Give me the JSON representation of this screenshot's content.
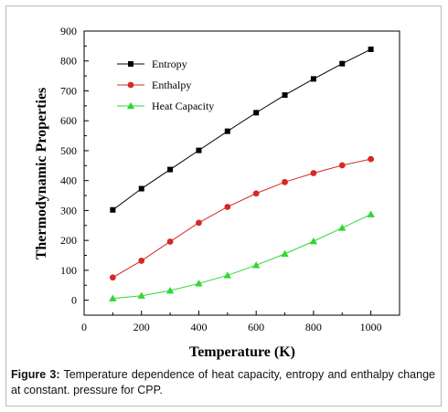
{
  "chart_data": {
    "type": "line",
    "title": "",
    "xlabel": "Temperature (K)",
    "ylabel": "Thermodynamic Properties",
    "xlim": [
      0,
      1100
    ],
    "ylim": [
      -50,
      900
    ],
    "x_ticks": [
      0,
      200,
      400,
      600,
      800,
      1000
    ],
    "y_ticks": [
      0,
      100,
      200,
      300,
      400,
      500,
      600,
      700,
      800,
      900
    ],
    "x": [
      100,
      200,
      300,
      400,
      500,
      600,
      700,
      800,
      900,
      1000
    ],
    "series": [
      {
        "name": "Entropy",
        "marker": "square",
        "color": "#000000",
        "values": [
          302,
          373,
          437,
          501,
          565,
          627,
          686,
          740,
          791,
          839
        ]
      },
      {
        "name": "Enthalpy",
        "marker": "circle",
        "color": "#d62828",
        "values": [
          76,
          132,
          196,
          259,
          312,
          357,
          395,
          425,
          451,
          472
        ]
      },
      {
        "name": "Heat Capacity",
        "marker": "triangle",
        "color": "#33d633",
        "values": [
          6,
          15,
          32,
          56,
          83,
          117,
          155,
          197,
          242,
          287
        ]
      }
    ],
    "legend_position": "top-left",
    "grid": false
  },
  "caption": {
    "label": "Figure 3:",
    "text": "Temperature dependence of heat capacity, entropy and enthalpy change at constant. pressure for CPP."
  }
}
